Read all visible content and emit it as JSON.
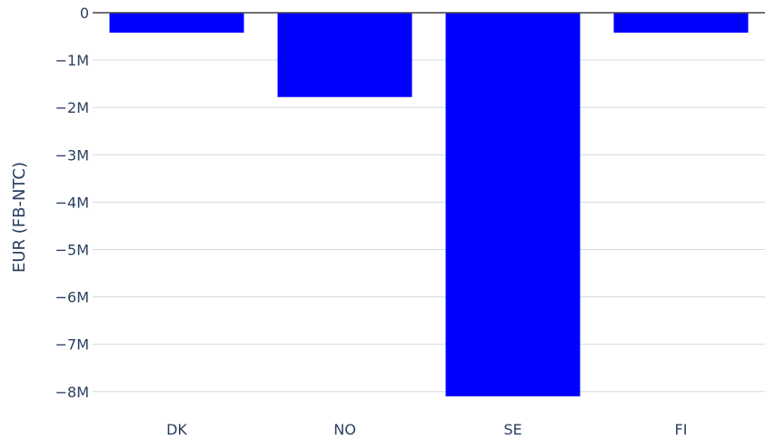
{
  "chart_data": {
    "type": "bar",
    "categories": [
      "DK",
      "NO",
      "SE",
      "FI"
    ],
    "values": [
      -420000,
      -1780000,
      -8100000,
      -420000
    ],
    "title": "",
    "xlabel": "",
    "ylabel": "EUR (FB-NTC)",
    "ylim": [
      -8100000,
      0
    ],
    "yticks": [
      0,
      -1000000,
      -2000000,
      -3000000,
      -4000000,
      -5000000,
      -6000000,
      -7000000,
      -8000000
    ],
    "ytick_labels": [
      "0",
      "−1M",
      "−2M",
      "−3M",
      "−4M",
      "−5M",
      "−6M",
      "−7M",
      "−8M"
    ],
    "grid": true,
    "bar_color": "#0000ff"
  }
}
